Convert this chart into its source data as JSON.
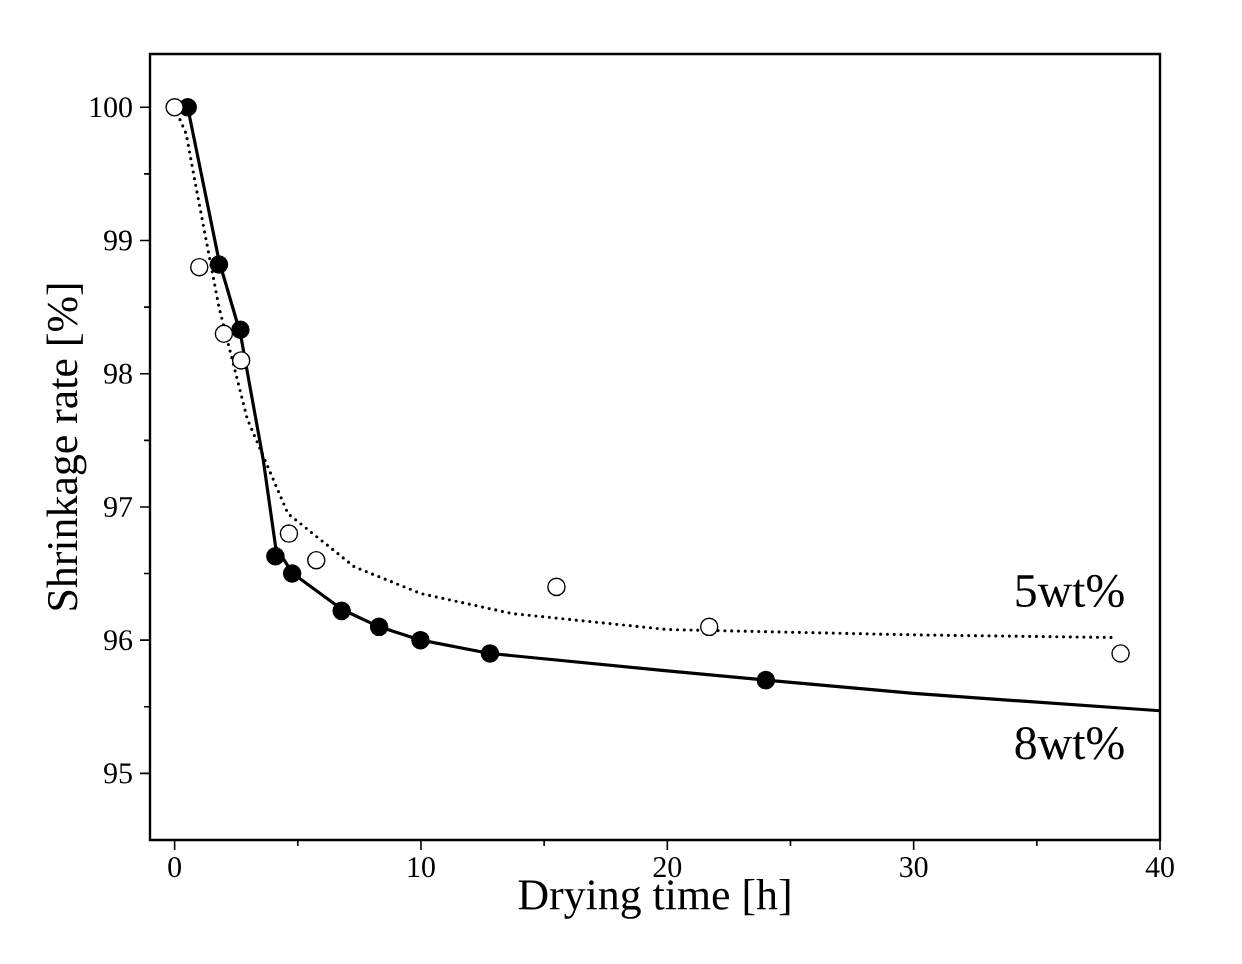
{
  "chart_data": {
    "type": "scatter",
    "xlabel": "Drying time [h]",
    "ylabel": "Shrinkage rate [%]",
    "xlim": [
      -1,
      40
    ],
    "ylim": [
      94.5,
      100.4
    ],
    "xticks": [
      0,
      10,
      20,
      30,
      40
    ],
    "yticks": [
      95,
      96,
      97,
      98,
      99,
      100
    ],
    "grid": false,
    "series": [
      {
        "type": "line",
        "name": "8wt%",
        "color": "#000000",
        "line_style": "solid",
        "marker": "none",
        "x": [
          0.53,
          1.8,
          2.67,
          3.6,
          4.1,
          4.8,
          6.8,
          8.3,
          10,
          12.8,
          20,
          24,
          30,
          40
        ],
        "values": [
          100,
          98.85,
          98.3,
          97.35,
          96.7,
          96.5,
          96.23,
          96.1,
          96.0,
          95.9,
          95.77,
          95.7,
          95.6,
          95.47
        ]
      },
      {
        "color": "#000000",
        "marker": "circle",
        "x": [
          0.53,
          1.8,
          2.67,
          4.09,
          4.77,
          6.78,
          8.3,
          9.98,
          12.8,
          24.0
        ],
        "values": [
          100,
          98.82,
          98.33,
          96.63,
          96.5,
          96.22,
          96.1,
          96.0,
          95.9,
          95.7
        ]
      },
      {
        "type": "line",
        "name": "5wt%",
        "color": "#000000",
        "line_style": "dotted",
        "marker": "none",
        "x": [
          0,
          0.47,
          0.87,
          1.8,
          2.95,
          4.6,
          7.3,
          10,
          13.7,
          20,
          30,
          38.2
        ],
        "values": [
          100,
          99.8,
          99.4,
          98.5,
          97.66,
          96.95,
          96.55,
          96.35,
          96.2,
          96.08,
          96.04,
          96.02
        ]
      },
      {
        "color": "#000000",
        "marker": "circle",
        "x": [
          0,
          1.0,
          2.0,
          2.7,
          4.64,
          5.75,
          15.5,
          21.7,
          38.4
        ],
        "values": [
          100,
          98.8,
          98.3,
          98.1,
          96.8,
          96.6,
          96.4,
          96.1,
          95.9
        ]
      }
    ]
  }
}
